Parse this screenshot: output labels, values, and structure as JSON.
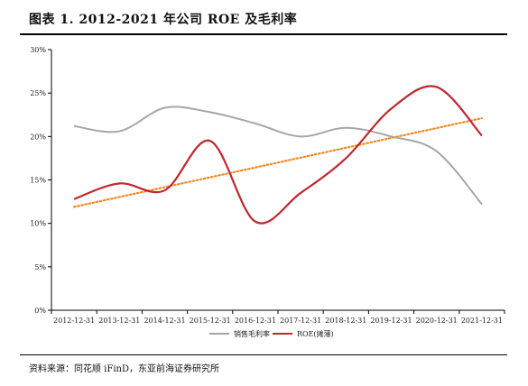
{
  "header": {
    "title": "图表 1.  2012-2021 年公司 ROE 及毛利率"
  },
  "footer": {
    "source": "资料来源：同花顺 iFinD，东亚前海证券研究所"
  },
  "chart_data": {
    "type": "line",
    "categories": [
      "2012-12-31",
      "2013-12-31",
      "2014-12-31",
      "2015-12-31",
      "2016-12-31",
      "2017-12-31",
      "2018-12-31",
      "2019-12-31",
      "2020-12-31",
      "2021-12-31"
    ],
    "ylim": [
      0,
      30
    ],
    "yticks": [
      0,
      5,
      10,
      15,
      20,
      25,
      30
    ],
    "ytick_labels": [
      "0%",
      "5%",
      "10%",
      "15%",
      "20%",
      "25%",
      "30%"
    ],
    "grid": false,
    "legend_position": "bottom",
    "series": [
      {
        "name": "销售毛利率",
        "color": "#a6a6a6",
        "values": [
          21.2,
          20.6,
          23.3,
          22.8,
          21.5,
          20.0,
          21.0,
          20.0,
          18.3,
          12.2
        ]
      },
      {
        "name": "ROE(摊薄)",
        "color": "#c0272d",
        "values": [
          12.8,
          14.6,
          13.8,
          19.5,
          10.2,
          13.5,
          17.5,
          23.2,
          25.7,
          20.1
        ]
      }
    ],
    "trendline": {
      "color": "#f08a24",
      "start": 11.9,
      "end": 22.1
    }
  }
}
